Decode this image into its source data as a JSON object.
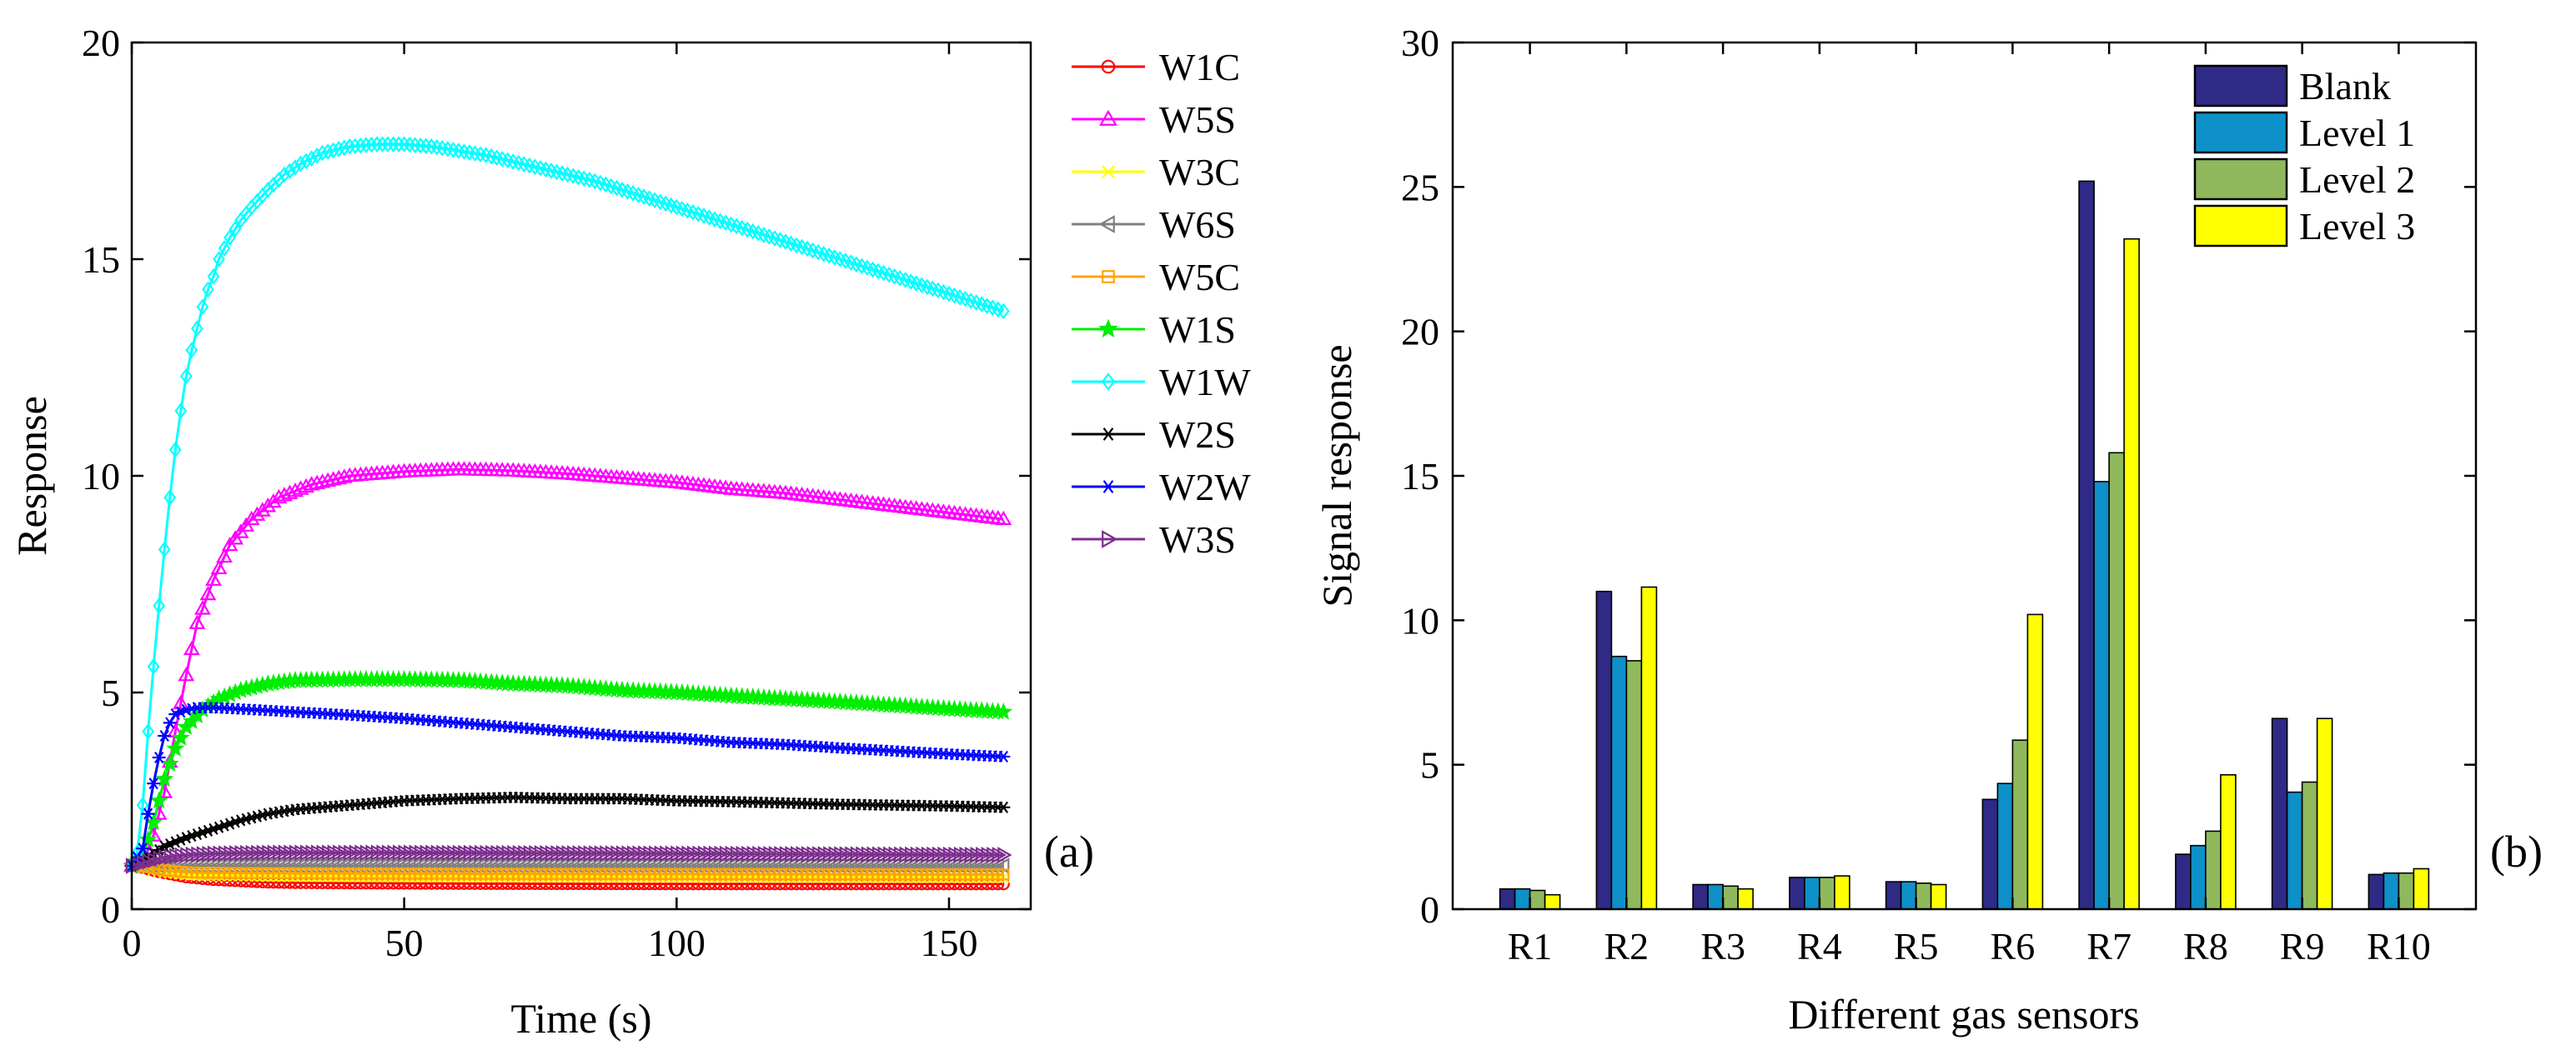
{
  "chart_data": [
    {
      "id": "a",
      "type": "line",
      "panel_label": "(a)",
      "title": "",
      "xlabel": "Time (s)",
      "ylabel": "Response",
      "xlim": [
        0,
        165
      ],
      "ylim": [
        0,
        20
      ],
      "xticks": [
        0,
        50,
        100,
        150
      ],
      "yticks": [
        0,
        5,
        10,
        15,
        20
      ],
      "legend_position": "outside-right",
      "series": [
        {
          "name": "W1C",
          "color": "#ff0000",
          "marker": "circle",
          "points": [
            [
              0,
              1.0
            ],
            [
              2,
              0.96
            ],
            [
              5,
              0.86
            ],
            [
              10,
              0.74
            ],
            [
              15,
              0.68
            ],
            [
              20,
              0.65
            ],
            [
              25,
              0.62
            ],
            [
              30,
              0.61
            ],
            [
              40,
              0.6
            ],
            [
              60,
              0.59
            ],
            [
              100,
              0.58
            ],
            [
              140,
              0.58
            ],
            [
              160,
              0.58
            ]
          ]
        },
        {
          "name": "W5S",
          "color": "#ff00ff",
          "marker": "triangle-up",
          "points": [
            [
              0,
              1.0
            ],
            [
              2,
              1.05
            ],
            [
              4,
              1.7
            ],
            [
              6,
              2.7
            ],
            [
              8,
              4.1
            ],
            [
              10,
              5.4
            ],
            [
              12,
              6.6
            ],
            [
              15,
              7.6
            ],
            [
              18,
              8.4
            ],
            [
              22,
              9.0
            ],
            [
              27,
              9.5
            ],
            [
              33,
              9.8
            ],
            [
              40,
              10.0
            ],
            [
              50,
              10.1
            ],
            [
              60,
              10.15
            ],
            [
              70,
              10.12
            ],
            [
              80,
              10.05
            ],
            [
              90,
              9.95
            ],
            [
              100,
              9.85
            ],
            [
              110,
              9.7
            ],
            [
              120,
              9.6
            ],
            [
              130,
              9.45
            ],
            [
              140,
              9.3
            ],
            [
              150,
              9.15
            ],
            [
              160,
              9.0
            ]
          ]
        },
        {
          "name": "W3C",
          "color": "#ffff00",
          "marker": "x",
          "points": [
            [
              0,
              1.0
            ],
            [
              3,
              0.95
            ],
            [
              6,
              0.85
            ],
            [
              10,
              0.8
            ],
            [
              15,
              0.78
            ],
            [
              25,
              0.76
            ],
            [
              50,
              0.75
            ],
            [
              100,
              0.74
            ],
            [
              160,
              0.73
            ]
          ]
        },
        {
          "name": "W6S",
          "color": "#808080",
          "marker": "triangle-left",
          "points": [
            [
              0,
              1.0
            ],
            [
              5,
              1.0
            ],
            [
              20,
              1.0
            ],
            [
              60,
              1.0
            ],
            [
              100,
              1.0
            ],
            [
              160,
              1.0
            ]
          ]
        },
        {
          "name": "W5C",
          "color": "#ffa500",
          "marker": "square",
          "points": [
            [
              0,
              1.0
            ],
            [
              3,
              0.97
            ],
            [
              6,
              0.9
            ],
            [
              10,
              0.85
            ],
            [
              15,
              0.84
            ],
            [
              25,
              0.83
            ],
            [
              50,
              0.82
            ],
            [
              100,
              0.81
            ],
            [
              160,
              0.8
            ]
          ]
        },
        {
          "name": "W1S",
          "color": "#00ee00",
          "marker": "star",
          "points": [
            [
              0,
              1.0
            ],
            [
              2,
              1.2
            ],
            [
              4,
              2.0
            ],
            [
              6,
              3.0
            ],
            [
              8,
              3.7
            ],
            [
              10,
              4.2
            ],
            [
              13,
              4.6
            ],
            [
              16,
              4.85
            ],
            [
              20,
              5.05
            ],
            [
              25,
              5.2
            ],
            [
              30,
              5.28
            ],
            [
              40,
              5.3
            ],
            [
              50,
              5.3
            ],
            [
              60,
              5.28
            ],
            [
              70,
              5.2
            ],
            [
              80,
              5.15
            ],
            [
              90,
              5.05
            ],
            [
              100,
              5.0
            ],
            [
              110,
              4.92
            ],
            [
              120,
              4.85
            ],
            [
              130,
              4.78
            ],
            [
              140,
              4.7
            ],
            [
              150,
              4.62
            ],
            [
              160,
              4.55
            ]
          ]
        },
        {
          "name": "W1W",
          "color": "#00ffff",
          "marker": "diamond",
          "points": [
            [
              0,
              1.0
            ],
            [
              1,
              1.3
            ],
            [
              2,
              2.4
            ],
            [
              3,
              4.1
            ],
            [
              4,
              5.6
            ],
            [
              5,
              7.0
            ],
            [
              6,
              8.3
            ],
            [
              7,
              9.5
            ],
            [
              8,
              10.6
            ],
            [
              9,
              11.5
            ],
            [
              10,
              12.3
            ],
            [
              11,
              12.9
            ],
            [
              12,
              13.4
            ],
            [
              13,
              13.9
            ],
            [
              14,
              14.3
            ],
            [
              15,
              14.6
            ],
            [
              16,
              15.0
            ],
            [
              18,
              15.5
            ],
            [
              20,
              15.9
            ],
            [
              22,
              16.2
            ],
            [
              25,
              16.6
            ],
            [
              28,
              16.95
            ],
            [
              31,
              17.2
            ],
            [
              35,
              17.45
            ],
            [
              40,
              17.6
            ],
            [
              45,
              17.65
            ],
            [
              50,
              17.65
            ],
            [
              55,
              17.6
            ],
            [
              60,
              17.5
            ],
            [
              65,
              17.4
            ],
            [
              70,
              17.25
            ],
            [
              75,
              17.1
            ],
            [
              80,
              16.95
            ],
            [
              85,
              16.8
            ],
            [
              90,
              16.6
            ],
            [
              95,
              16.4
            ],
            [
              100,
              16.2
            ],
            [
              105,
              16.0
            ],
            [
              110,
              15.8
            ],
            [
              115,
              15.6
            ],
            [
              120,
              15.4
            ],
            [
              125,
              15.2
            ],
            [
              130,
              15.0
            ],
            [
              135,
              14.8
            ],
            [
              140,
              14.6
            ],
            [
              145,
              14.4
            ],
            [
              150,
              14.2
            ],
            [
              155,
              14.0
            ],
            [
              160,
              13.8
            ]
          ]
        },
        {
          "name": "W2S",
          "color": "#000000",
          "marker": "asterisk",
          "points": [
            [
              0,
              1.0
            ],
            [
              3,
              1.2
            ],
            [
              6,
              1.45
            ],
            [
              10,
              1.65
            ],
            [
              15,
              1.85
            ],
            [
              20,
              2.05
            ],
            [
              25,
              2.2
            ],
            [
              30,
              2.3
            ],
            [
              40,
              2.4
            ],
            [
              50,
              2.5
            ],
            [
              60,
              2.55
            ],
            [
              70,
              2.58
            ],
            [
              80,
              2.55
            ],
            [
              90,
              2.55
            ],
            [
              100,
              2.5
            ],
            [
              110,
              2.48
            ],
            [
              120,
              2.45
            ],
            [
              130,
              2.42
            ],
            [
              140,
              2.4
            ],
            [
              150,
              2.38
            ],
            [
              160,
              2.35
            ]
          ]
        },
        {
          "name": "W2W",
          "color": "#0000ff",
          "marker": "asterisk",
          "points": [
            [
              0,
              1.0
            ],
            [
              2,
              1.4
            ],
            [
              3,
              2.2
            ],
            [
              4,
              2.9
            ],
            [
              5,
              3.5
            ],
            [
              6,
              4.0
            ],
            [
              7,
              4.3
            ],
            [
              8,
              4.5
            ],
            [
              10,
              4.6
            ],
            [
              12,
              4.65
            ],
            [
              15,
              4.65
            ],
            [
              20,
              4.62
            ],
            [
              30,
              4.55
            ],
            [
              40,
              4.48
            ],
            [
              50,
              4.4
            ],
            [
              60,
              4.3
            ],
            [
              70,
              4.2
            ],
            [
              80,
              4.1
            ],
            [
              90,
              4.0
            ],
            [
              100,
              3.95
            ],
            [
              110,
              3.85
            ],
            [
              120,
              3.8
            ],
            [
              130,
              3.72
            ],
            [
              140,
              3.65
            ],
            [
              150,
              3.58
            ],
            [
              160,
              3.52
            ]
          ]
        },
        {
          "name": "W3S",
          "color": "#7d2e8e",
          "marker": "triangle-right",
          "points": [
            [
              0,
              1.0
            ],
            [
              3,
              1.1
            ],
            [
              6,
              1.2
            ],
            [
              10,
              1.25
            ],
            [
              15,
              1.28
            ],
            [
              25,
              1.3
            ],
            [
              50,
              1.3
            ],
            [
              100,
              1.28
            ],
            [
              160,
              1.25
            ]
          ]
        }
      ]
    },
    {
      "id": "b",
      "type": "bar",
      "panel_label": "(b)",
      "title": "",
      "xlabel": "Different gas sensors",
      "ylabel": "Signal response",
      "ylim": [
        0,
        30
      ],
      "yticks": [
        0,
        5,
        10,
        15,
        20,
        25,
        30
      ],
      "legend_position": "top-right",
      "categories": [
        "R1",
        "R2",
        "R3",
        "R4",
        "R5",
        "R6",
        "R7",
        "R8",
        "R9",
        "R10"
      ],
      "series": [
        {
          "name": "Blank",
          "color": "#2e2a86",
          "values": [
            0.7,
            11.0,
            0.85,
            1.1,
            0.95,
            3.8,
            25.2,
            1.9,
            6.6,
            1.2
          ]
        },
        {
          "name": "Level 1",
          "color": "#0e90c8",
          "values": [
            0.7,
            8.75,
            0.85,
            1.1,
            0.95,
            4.35,
            14.8,
            2.2,
            4.05,
            1.25
          ]
        },
        {
          "name": "Level 2",
          "color": "#8fb95c",
          "values": [
            0.65,
            8.6,
            0.8,
            1.1,
            0.9,
            5.85,
            15.8,
            2.7,
            4.4,
            1.25
          ]
        },
        {
          "name": "Level 3",
          "color": "#ffff00",
          "values": [
            0.5,
            11.15,
            0.7,
            1.15,
            0.85,
            10.2,
            23.2,
            4.65,
            6.6,
            1.4
          ]
        }
      ]
    }
  ]
}
